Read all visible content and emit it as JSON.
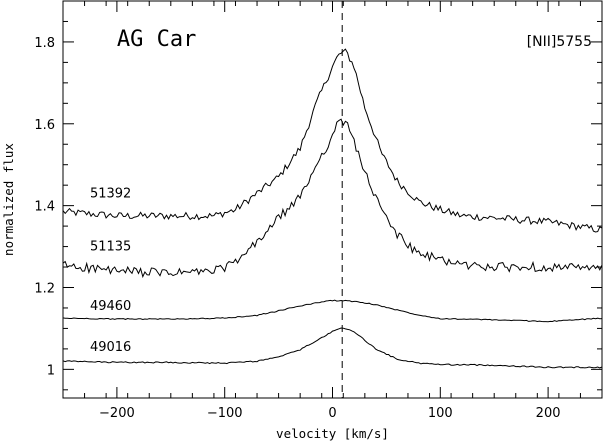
{
  "chart_data": {
    "type": "line",
    "title": "AG Car",
    "annotation": "[NII]5755",
    "xlabel": "velocity [km/s]",
    "ylabel": "normalized flux",
    "xlim": [
      -250,
      250
    ],
    "ylim": [
      0.93,
      1.9
    ],
    "x_ticks": [
      -200,
      -100,
      0,
      100,
      200
    ],
    "x_tick_labels": [
      "−200",
      "−100",
      "0",
      "100",
      "200"
    ],
    "y_ticks": [
      1,
      1.2,
      1.4,
      1.6,
      1.8
    ],
    "y_tick_labels": [
      "1",
      "1.2",
      "1.4",
      "1.6",
      "1.8"
    ],
    "reference_line_x": 9,
    "series": [
      {
        "name": "51392",
        "label_at": [
          -225,
          1.42
        ],
        "x": [
          -250,
          -200,
          -150,
          -110,
          -90,
          -70,
          -50,
          -30,
          -15,
          0,
          5,
          9,
          13,
          20,
          30,
          45,
          60,
          80,
          100,
          120,
          150,
          200,
          250
        ],
        "values": [
          1.385,
          1.375,
          1.375,
          1.375,
          1.39,
          1.43,
          1.47,
          1.54,
          1.65,
          1.74,
          1.765,
          1.775,
          1.775,
          1.74,
          1.64,
          1.53,
          1.46,
          1.41,
          1.39,
          1.375,
          1.37,
          1.36,
          1.34
        ]
      },
      {
        "name": "51135",
        "label_at": [
          -225,
          1.29
        ],
        "x": [
          -250,
          -200,
          -150,
          -110,
          -90,
          -70,
          -50,
          -30,
          -15,
          0,
          5,
          9,
          13,
          20,
          30,
          45,
          60,
          80,
          100,
          120,
          150,
          200,
          250
        ],
        "values": [
          1.255,
          1.24,
          1.235,
          1.24,
          1.26,
          1.31,
          1.37,
          1.42,
          1.5,
          1.57,
          1.6,
          1.605,
          1.6,
          1.56,
          1.48,
          1.39,
          1.33,
          1.28,
          1.27,
          1.255,
          1.25,
          1.25,
          1.245
        ]
      },
      {
        "name": "49460",
        "label_at": [
          -225,
          1.145
        ],
        "x": [
          -250,
          -200,
          -150,
          -100,
          -70,
          -50,
          -30,
          -10,
          0,
          9,
          20,
          40,
          60,
          80,
          100,
          150,
          200,
          250
        ],
        "values": [
          1.125,
          1.123,
          1.123,
          1.125,
          1.132,
          1.143,
          1.155,
          1.165,
          1.168,
          1.168,
          1.166,
          1.158,
          1.145,
          1.133,
          1.124,
          1.121,
          1.117,
          1.125
        ]
      },
      {
        "name": "49016",
        "label_at": [
          -225,
          1.045
        ],
        "x": [
          -250,
          -200,
          -150,
          -100,
          -70,
          -50,
          -30,
          -15,
          0,
          5,
          9,
          15,
          25,
          40,
          60,
          80,
          100,
          150,
          200,
          250
        ],
        "values": [
          1.02,
          1.017,
          1.017,
          1.015,
          1.02,
          1.03,
          1.048,
          1.07,
          1.092,
          1.1,
          1.102,
          1.098,
          1.082,
          1.05,
          1.025,
          1.015,
          1.012,
          1.01,
          1.005,
          1.005
        ]
      }
    ]
  }
}
